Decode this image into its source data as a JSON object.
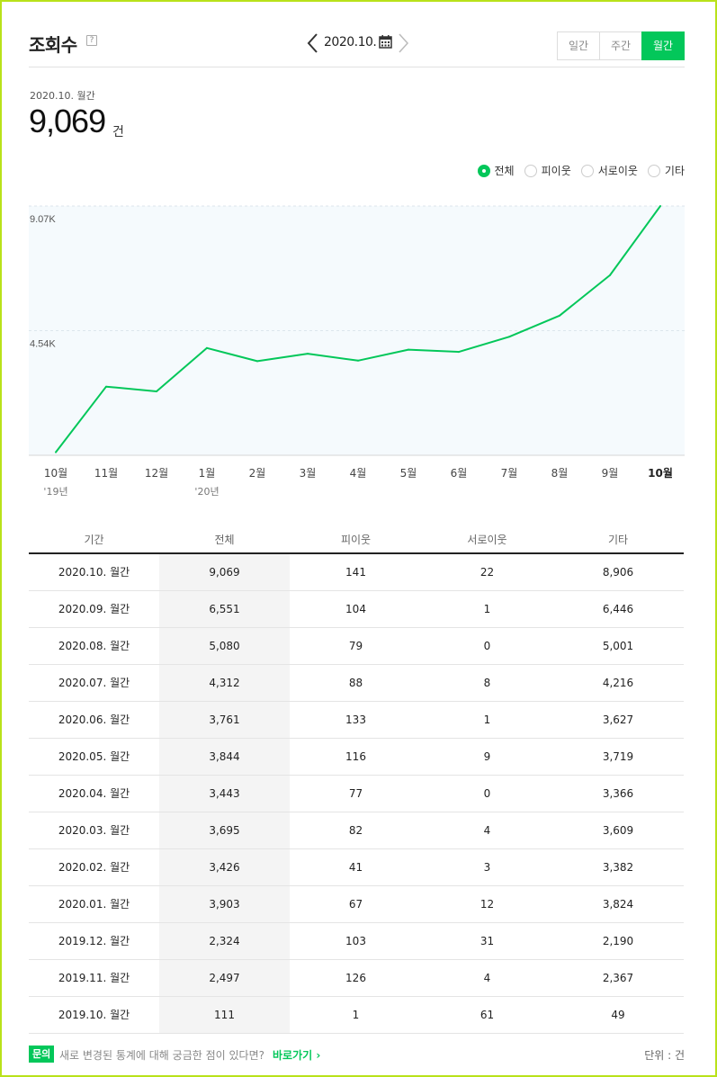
{
  "header": {
    "title": "조회수",
    "help": "?",
    "date": "2020.10.",
    "tabs": [
      {
        "label": "일간",
        "active": false
      },
      {
        "label": "주간",
        "active": false
      },
      {
        "label": "월간",
        "active": true
      }
    ]
  },
  "summary": {
    "date_label": "2020.10. 월간",
    "value": "9,069",
    "unit": "건"
  },
  "legend": [
    {
      "label": "전체",
      "selected": true
    },
    {
      "label": "피이웃",
      "selected": false
    },
    {
      "label": "서로이웃",
      "selected": false
    },
    {
      "label": "기타",
      "selected": false
    }
  ],
  "chart_data": {
    "type": "line",
    "categories": [
      "10월",
      "11월",
      "12월",
      "1월",
      "2월",
      "3월",
      "4월",
      "5월",
      "6월",
      "7월",
      "8월",
      "9월",
      "10월"
    ],
    "year_labels": [
      "'19년",
      "",
      "",
      "'20년",
      "",
      "",
      "",
      "",
      "",
      "",
      "",
      "",
      ""
    ],
    "series": [
      {
        "values": [
          111,
          2497,
          2324,
          3903,
          3426,
          3695,
          3443,
          3844,
          3761,
          4312,
          5080,
          6551,
          9069
        ]
      }
    ],
    "yticks": [
      "9.07K",
      "4.54K"
    ],
    "ytick_values": [
      9069,
      4535
    ],
    "ylim": [
      0,
      9069
    ],
    "grid": true,
    "line_color": "#03c75a",
    "plot_bg": "#f5fafd"
  },
  "table": {
    "headers": [
      "기간",
      "전체",
      "피이웃",
      "서로이웃",
      "기타"
    ],
    "rows": [
      [
        "2020.10. 월간",
        "9,069",
        "141",
        "22",
        "8,906"
      ],
      [
        "2020.09. 월간",
        "6,551",
        "104",
        "1",
        "6,446"
      ],
      [
        "2020.08. 월간",
        "5,080",
        "79",
        "0",
        "5,001"
      ],
      [
        "2020.07. 월간",
        "4,312",
        "88",
        "8",
        "4,216"
      ],
      [
        "2020.06. 월간",
        "3,761",
        "133",
        "1",
        "3,627"
      ],
      [
        "2020.05. 월간",
        "3,844",
        "116",
        "9",
        "3,719"
      ],
      [
        "2020.04. 월간",
        "3,443",
        "77",
        "0",
        "3,366"
      ],
      [
        "2020.03. 월간",
        "3,695",
        "82",
        "4",
        "3,609"
      ],
      [
        "2020.02. 월간",
        "3,426",
        "41",
        "3",
        "3,382"
      ],
      [
        "2020.01. 월간",
        "3,903",
        "67",
        "12",
        "3,824"
      ],
      [
        "2019.12. 월간",
        "2,324",
        "103",
        "31",
        "2,190"
      ],
      [
        "2019.11. 월간",
        "2,497",
        "126",
        "4",
        "2,367"
      ],
      [
        "2019.10. 월간",
        "111",
        "1",
        "61",
        "49"
      ]
    ]
  },
  "footer": {
    "badge": "문의",
    "text": "새로 변경된 통계에 대해 궁금한 점이 있다면?",
    "link": "바로가기 ›",
    "unit": "단위 : 건"
  },
  "colors": {
    "accent": "#03c75a",
    "frame": "#b9e21a"
  }
}
